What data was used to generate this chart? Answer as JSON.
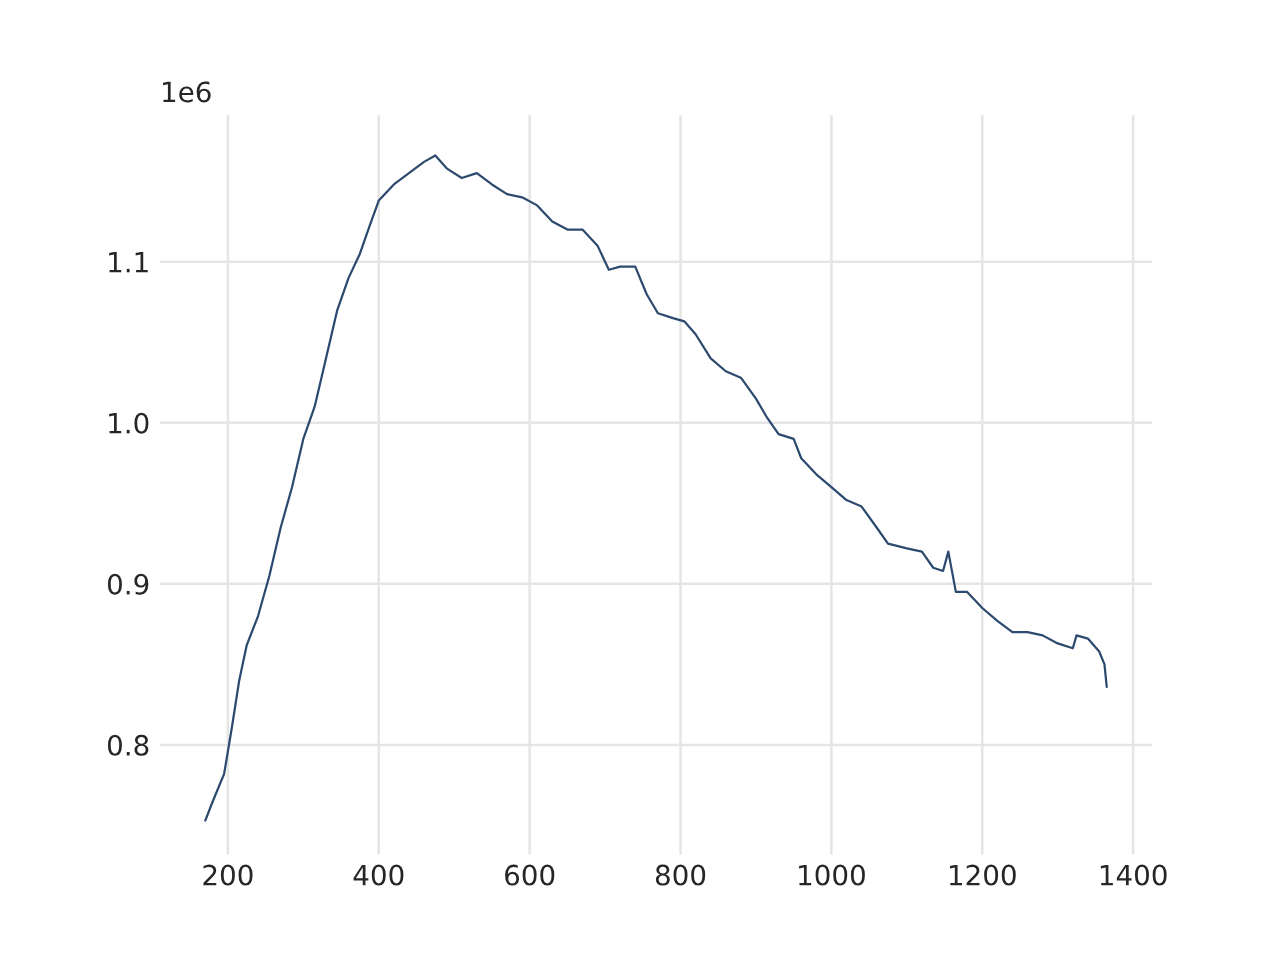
{
  "chart_data": {
    "type": "line",
    "annotations": [
      "1e6"
    ],
    "x": [
      170,
      180,
      195,
      205,
      215,
      225,
      240,
      255,
      270,
      285,
      300,
      315,
      330,
      345,
      360,
      375,
      390,
      400,
      420,
      440,
      460,
      475,
      490,
      510,
      530,
      550,
      570,
      590,
      610,
      630,
      650,
      670,
      690,
      705,
      720,
      740,
      755,
      770,
      790,
      805,
      820,
      840,
      860,
      880,
      900,
      915,
      930,
      950,
      960,
      980,
      1000,
      1020,
      1040,
      1060,
      1075,
      1100,
      1120,
      1135,
      1148,
      1155,
      1165,
      1180,
      1200,
      1220,
      1240,
      1260,
      1280,
      1300,
      1320,
      1325,
      1340,
      1355,
      1362,
      1365
    ],
    "series": [
      {
        "color": "#2c4a6e",
        "values": [
          0.753,
          0.765,
          0.782,
          0.81,
          0.84,
          0.862,
          0.88,
          0.905,
          0.935,
          0.96,
          0.99,
          1.01,
          1.04,
          1.07,
          1.09,
          1.105,
          1.125,
          1.138,
          1.148,
          1.155,
          1.162,
          1.166,
          1.158,
          1.152,
          1.155,
          1.148,
          1.142,
          1.14,
          1.135,
          1.125,
          1.12,
          1.12,
          1.11,
          1.095,
          1.097,
          1.097,
          1.08,
          1.068,
          1.065,
          1.063,
          1.055,
          1.04,
          1.032,
          1.028,
          1.015,
          1.003,
          0.993,
          0.99,
          0.978,
          0.968,
          0.96,
          0.952,
          0.948,
          0.935,
          0.925,
          0.922,
          0.92,
          0.91,
          0.908,
          0.92,
          0.895,
          0.895,
          0.885,
          0.877,
          0.87,
          0.87,
          0.868,
          0.863,
          0.86,
          0.868,
          0.866,
          0.858,
          0.85,
          0.836
        ]
      }
    ],
    "xlim": [
      110,
      1425
    ],
    "xticks": [
      200,
      400,
      600,
      800,
      1000,
      1200,
      1400
    ],
    "ylim": [
      0.732,
      1.191
    ],
    "yticks": [
      {
        "value": 0.8,
        "label": "0.8"
      },
      {
        "value": 0.9,
        "label": "0.9"
      },
      {
        "value": 1.0,
        "label": "1.0"
      },
      {
        "value": 1.1,
        "label": "1.1"
      }
    ],
    "grid": true,
    "marker": "none",
    "line_style": "solid"
  }
}
